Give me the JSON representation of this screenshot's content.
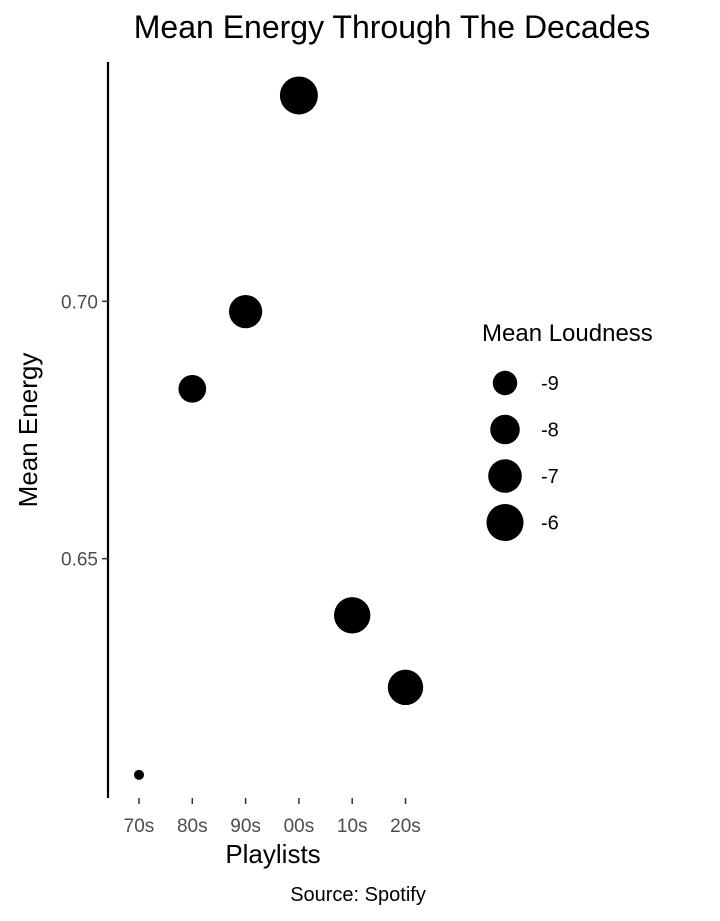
{
  "chart_data": {
    "type": "scatter",
    "title": "Mean Energy Through The Decades",
    "xlabel": "Playlists",
    "ylabel": "Mean Energy",
    "caption": "Source: Spotify",
    "categories": [
      "70s",
      "80s",
      "90s",
      "00s",
      "10s",
      "20s"
    ],
    "y": [
      0.608,
      0.683,
      0.698,
      0.74,
      0.639,
      0.625
    ],
    "size": [
      -10.2,
      -8.4,
      -7.1,
      -5.7,
      -6.2,
      -6.5
    ],
    "size_label": "Mean Loudness",
    "size_breaks": [
      -9,
      -8,
      -7,
      -6
    ],
    "size_break_labels": [
      "-9",
      "-8",
      "-7",
      "-6"
    ],
    "y_ticks": [
      0.65,
      0.7
    ],
    "y_tick_labels": [
      "0.65",
      "0.70"
    ],
    "ylim": [
      0.6035,
      0.7465
    ],
    "grid": false,
    "legend_position": "right",
    "marker_color": "#000000"
  }
}
